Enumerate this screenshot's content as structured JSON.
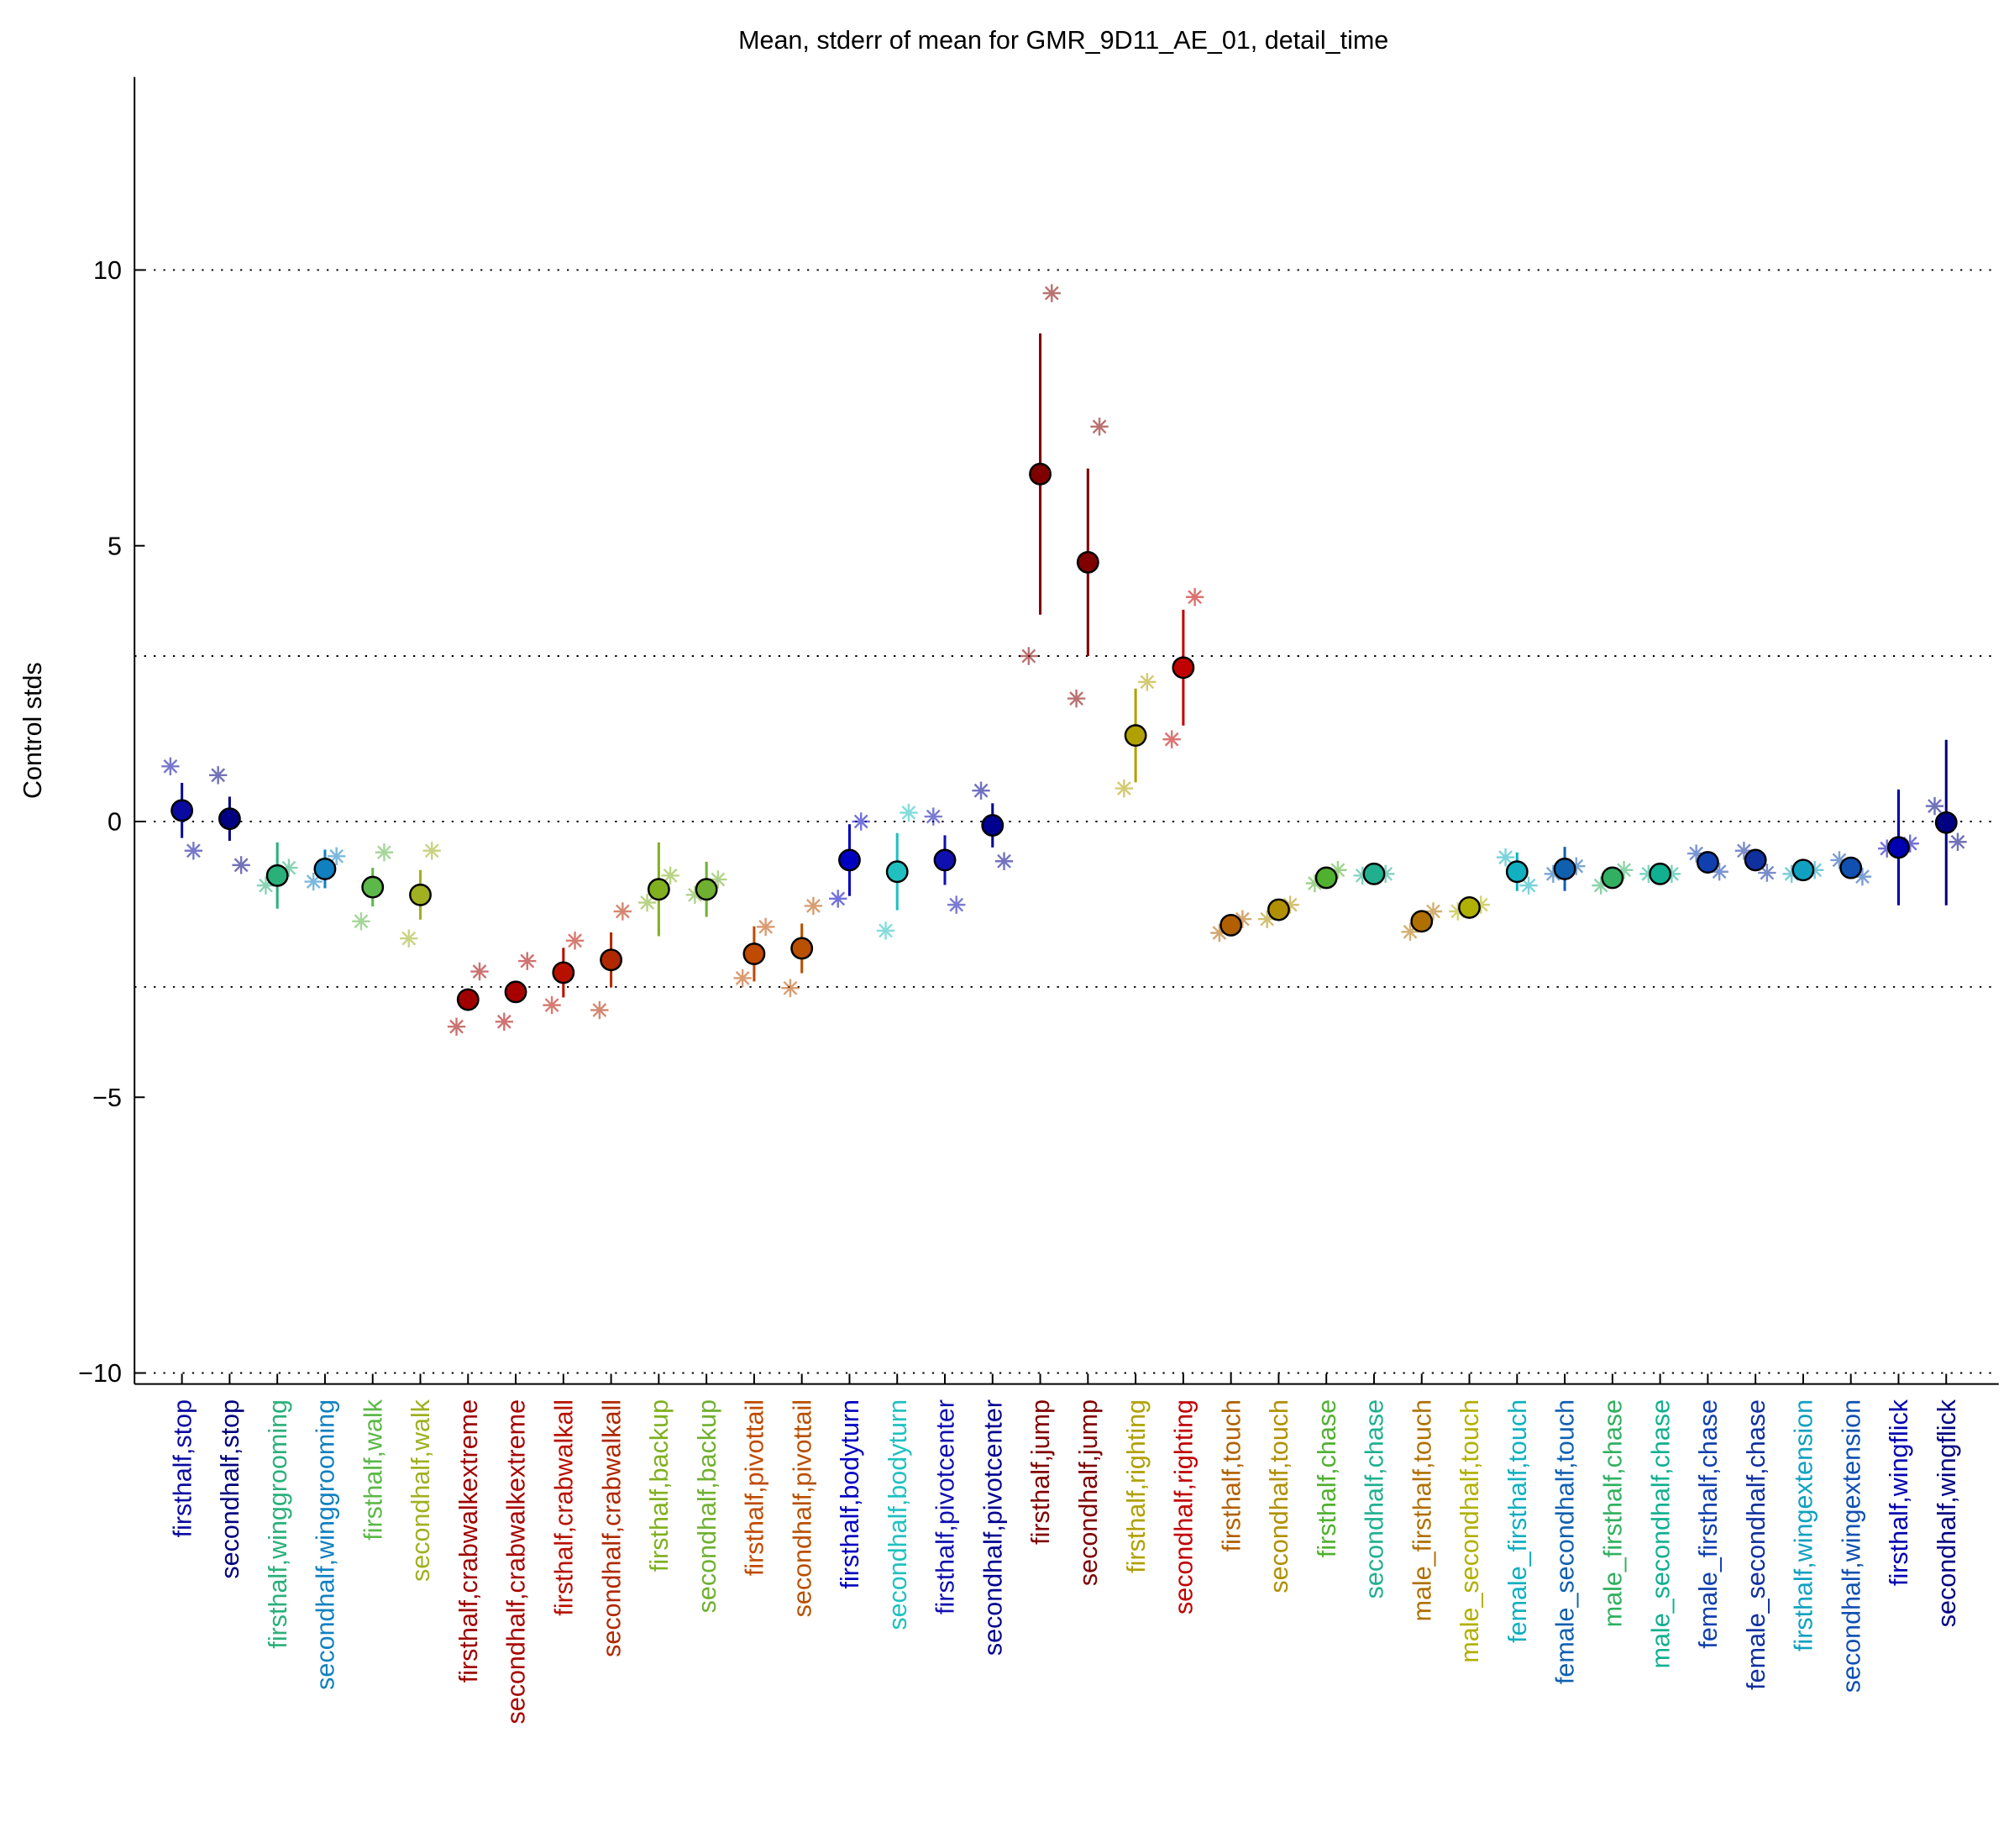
{
  "chart_data": {
    "type": "dot",
    "title": "Mean, stderr of mean for GMR_9D11_AE_01, detail_time",
    "ylabel": "Control stds",
    "categories": [
      "firsthalf,stop",
      "secondhalf,stop",
      "firsthalf,winggrooming",
      "secondhalf,winggrooming",
      "firsthalf,walk",
      "secondhalf,walk",
      "firsthalf,crabwalkextreme",
      "secondhalf,crabwalkextreme",
      "firsthalf,crabwalkall",
      "secondhalf,crabwalkall",
      "firsthalf,backup",
      "secondhalf,backup",
      "firsthalf,pivottail",
      "secondhalf,pivottail",
      "firsthalf,bodyturn",
      "secondhalf,bodyturn",
      "firsthalf,pivotcenter",
      "secondhalf,pivotcenter",
      "firsthalf,jump",
      "secondhalf,jump",
      "firsthalf,righting",
      "secondhalf,righting",
      "firsthalf,touch",
      "secondhalf,touch",
      "firsthalf,chase",
      "secondhalf,chase",
      "male_firsthalf,touch",
      "male_secondhalf,touch",
      "female_firsthalf,touch",
      "female_secondhalf,touch",
      "male_firsthalf,chase",
      "male_secondhalf,chase",
      "female_firsthalf,chase",
      "female_secondhalf,chase",
      "firsthalf,wingextension",
      "secondhalf,wingextension",
      "firsthalf,wingflick",
      "secondhalf,wingflick"
    ],
    "colors": [
      "#0a0aa0",
      "#000080",
      "#2ab07a",
      "#1080c0",
      "#5cb848",
      "#a0b020",
      "#a00000",
      "#a80000",
      "#b81000",
      "#b02800",
      "#80b020",
      "#70b030",
      "#c04a00",
      "#b85000",
      "#0000c0",
      "#20c0c0",
      "#1010b0",
      "#000090",
      "#800000",
      "#800000",
      "#b0a000",
      "#c00000",
      "#b06000",
      "#b09000",
      "#50b030",
      "#20b090",
      "#b07000",
      "#b0b000",
      "#10b0c0",
      "#1060b0",
      "#30b060",
      "#10b090",
      "#1040b0",
      "#1030a0",
      "#10a0c0",
      "#1050b0",
      "#0000b0",
      "#000080"
    ],
    "values": [
      0.2,
      0.05,
      -0.98,
      -0.86,
      -1.19,
      -1.33,
      -3.23,
      -3.09,
      -2.74,
      -2.51,
      -1.23,
      -1.23,
      -2.4,
      -2.3,
      -0.7,
      -0.91,
      -0.7,
      -0.07,
      6.3,
      4.7,
      1.56,
      2.79,
      -1.88,
      -1.6,
      -1.02,
      -0.95,
      -1.81,
      -1.56,
      -0.91,
      -0.86,
      -1.02,
      -0.95,
      -0.74,
      -0.7,
      -0.88,
      -0.84,
      -0.47,
      -0.02
    ],
    "errors": [
      0.5,
      0.4,
      0.6,
      0.35,
      0.35,
      0.45,
      0.2,
      0.2,
      0.45,
      0.5,
      0.85,
      0.5,
      0.5,
      0.45,
      0.65,
      0.7,
      0.45,
      0.4,
      2.55,
      1.7,
      0.85,
      1.05,
      0.15,
      0.15,
      0.1,
      0.1,
      0.15,
      0.1,
      0.35,
      0.4,
      0.1,
      0.08,
      0.1,
      0.1,
      0.1,
      0.1,
      1.05,
      1.5
    ],
    "points_left": [
      1.0,
      0.84,
      -1.16,
      -1.09,
      -1.81,
      -2.12,
      -3.72,
      -3.63,
      -3.33,
      -3.42,
      -1.47,
      -1.33,
      -2.84,
      -3.02,
      -1.4,
      -1.98,
      0.09,
      0.56,
      3.0,
      2.23,
      0.6,
      1.49,
      -2.02,
      -1.77,
      -1.12,
      -0.98,
      -2.0,
      -1.63,
      -0.65,
      -0.95,
      -1.16,
      -0.95,
      -0.58,
      -0.53,
      -0.95,
      -0.7,
      -0.49,
      0.28
    ],
    "points_right": [
      -0.53,
      -0.79,
      -0.84,
      -0.63,
      -0.56,
      -0.53,
      -2.72,
      -2.53,
      -2.16,
      -1.63,
      -0.98,
      -1.05,
      -1.91,
      -1.53,
      0.0,
      0.16,
      -1.51,
      -0.72,
      9.58,
      7.16,
      2.53,
      4.07,
      -1.77,
      -1.51,
      -0.88,
      -0.95,
      -1.63,
      -1.51,
      -1.16,
      -0.81,
      -0.88,
      -0.95,
      -0.91,
      -0.93,
      -0.88,
      -1.0,
      -0.4,
      -0.37
    ],
    "ylim": [
      -10.2,
      13.5
    ],
    "yticks": [
      {
        "value": -10,
        "label": "−10"
      },
      {
        "value": -5,
        "label": "−5"
      },
      0,
      5,
      10
    ],
    "reference_lines": [
      -10,
      -3,
      0,
      3,
      10
    ]
  }
}
